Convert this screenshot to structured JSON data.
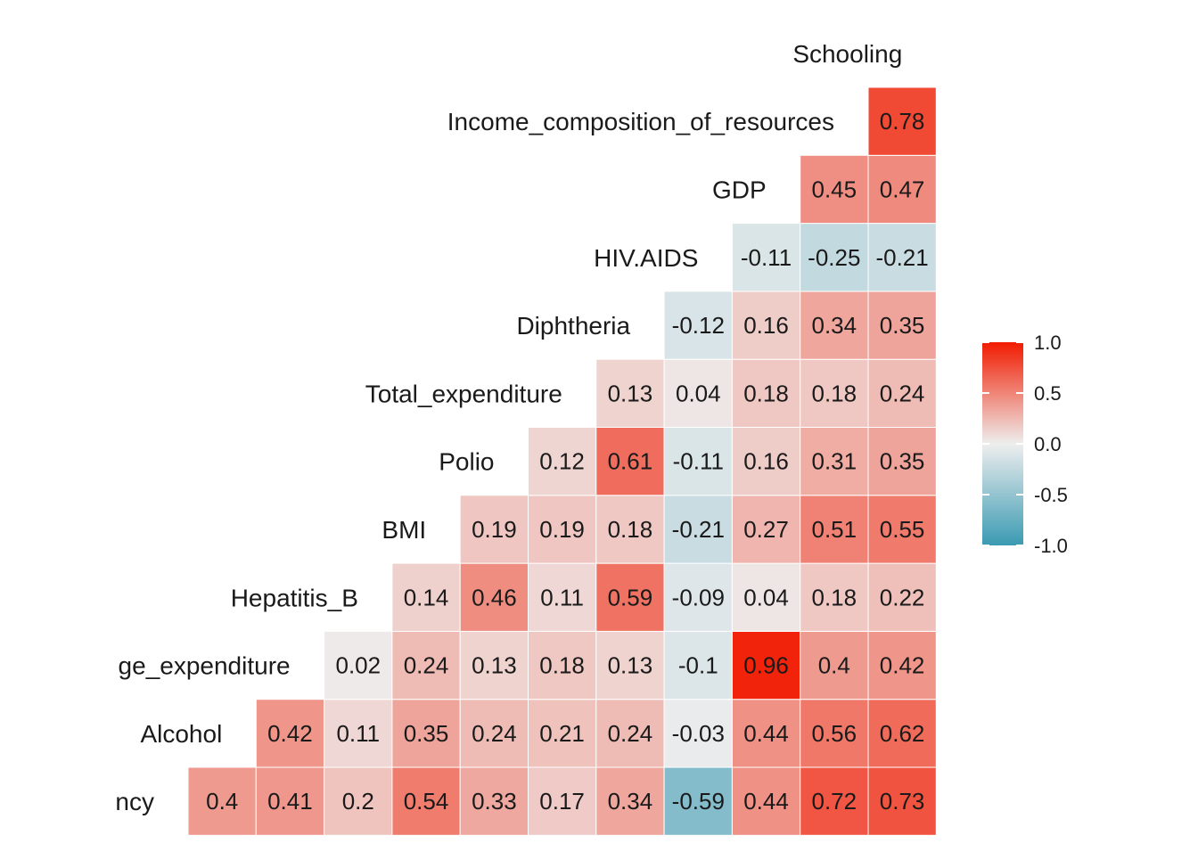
{
  "chart_data": {
    "type": "heatmap",
    "title": "",
    "variables": [
      "Life_expectancy",
      "Alcohol",
      "percentage_expenditure",
      "Hepatitis_B",
      "BMI",
      "Polio",
      "Total_expenditure",
      "Diphtheria",
      "HIV.AIDS",
      "GDP",
      "Income_composition_of_resources",
      "Schooling"
    ],
    "row_labels_visible": [
      "ncy",
      "Alcohol",
      "ge_expenditure",
      "Hepatitis_B",
      "BMI",
      "Polio",
      "Total_expenditure",
      "Diphtheria",
      "HIV.AIDS",
      "GDP",
      "Income_composition_of_resources",
      "Schooling"
    ],
    "values": [
      [
        0.4,
        0.41,
        0.2,
        0.54,
        0.33,
        0.17,
        0.34,
        -0.59,
        0.44,
        0.72,
        0.73
      ],
      [
        0.42,
        0.11,
        0.35,
        0.24,
        0.21,
        0.24,
        -0.03,
        0.44,
        0.56,
        0.62
      ],
      [
        0.02,
        0.24,
        0.13,
        0.18,
        0.13,
        -0.1,
        0.96,
        0.4,
        0.42
      ],
      [
        0.14,
        0.46,
        0.11,
        0.59,
        -0.09,
        0.04,
        0.18,
        0.22
      ],
      [
        0.19,
        0.19,
        0.18,
        -0.21,
        0.27,
        0.51,
        0.55
      ],
      [
        0.12,
        0.61,
        -0.11,
        0.16,
        0.31,
        0.35
      ],
      [
        0.13,
        0.04,
        0.18,
        0.18,
        0.24
      ],
      [
        -0.12,
        0.16,
        0.34,
        0.35
      ],
      [
        -0.11,
        -0.25,
        -0.21
      ],
      [
        0.45,
        0.47
      ],
      [
        0.78
      ]
    ],
    "value_labels": [
      [
        "0.4",
        "0.41",
        "0.2",
        "0.54",
        "0.33",
        "0.17",
        "0.34",
        "-0.59",
        "0.44",
        "0.72",
        "0.73"
      ],
      [
        "0.42",
        "0.11",
        "0.35",
        "0.24",
        "0.21",
        "0.24",
        "-0.03",
        "0.44",
        "0.56",
        "0.62"
      ],
      [
        "0.02",
        "0.24",
        "0.13",
        "0.18",
        "0.13",
        "-0.1",
        "0.96",
        "0.4",
        "0.42"
      ],
      [
        "0.14",
        "0.46",
        "0.11",
        "0.59",
        "-0.09",
        "0.04",
        "0.18",
        "0.22"
      ],
      [
        "0.19",
        "0.19",
        "0.18",
        "-0.21",
        "0.27",
        "0.51",
        "0.55"
      ],
      [
        "0.12",
        "0.61",
        "-0.11",
        "0.16",
        "0.31",
        "0.35"
      ],
      [
        "0.13",
        "0.04",
        "0.18",
        "0.18",
        "0.24"
      ],
      [
        "-0.12",
        "0.16",
        "0.34",
        "0.35"
      ],
      [
        "-0.11",
        "-0.25",
        "-0.21"
      ],
      [
        "0.45",
        "0.47"
      ],
      [
        "0.78"
      ]
    ],
    "legend": {
      "ticks": [
        "1.0",
        "0.5",
        "0.0",
        "-0.5",
        "-1.0"
      ],
      "tick_values": [
        1.0,
        0.5,
        0.0,
        -0.5,
        -1.0
      ],
      "range": [
        -1,
        1
      ],
      "placement": "right"
    },
    "colors": {
      "low": "#3A9AB2",
      "mid": "#EEEEEE",
      "high": "#F11B00",
      "cell_border": "#ffffff",
      "text": "#1a1a1a"
    },
    "grid": false
  }
}
